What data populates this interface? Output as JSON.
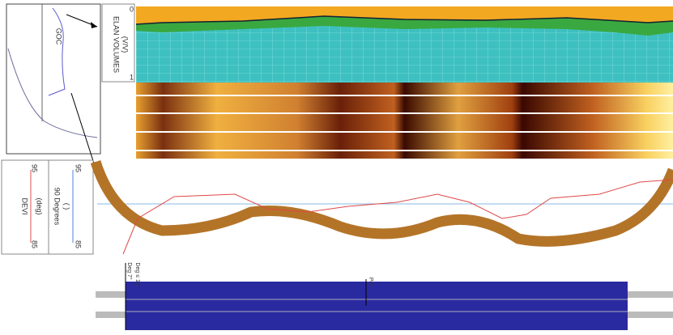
{
  "inset": {
    "label": "GOC"
  },
  "elan": {
    "title": "ELAN VOLUMES",
    "unit": "(V/V)",
    "min": 0,
    "max": 1
  },
  "devi": {
    "tracks": [
      {
        "name": "DEVI",
        "unit": "(deg)",
        "min": 85,
        "max": 95
      },
      {
        "name": "90 Degrees",
        "unit": "( )",
        "min": 85,
        "max": 95
      }
    ]
  },
  "bottom": {
    "labels": [
      "Deg 7°",
      "Deg ≤ 10°",
      "Pef"
    ]
  }
}
